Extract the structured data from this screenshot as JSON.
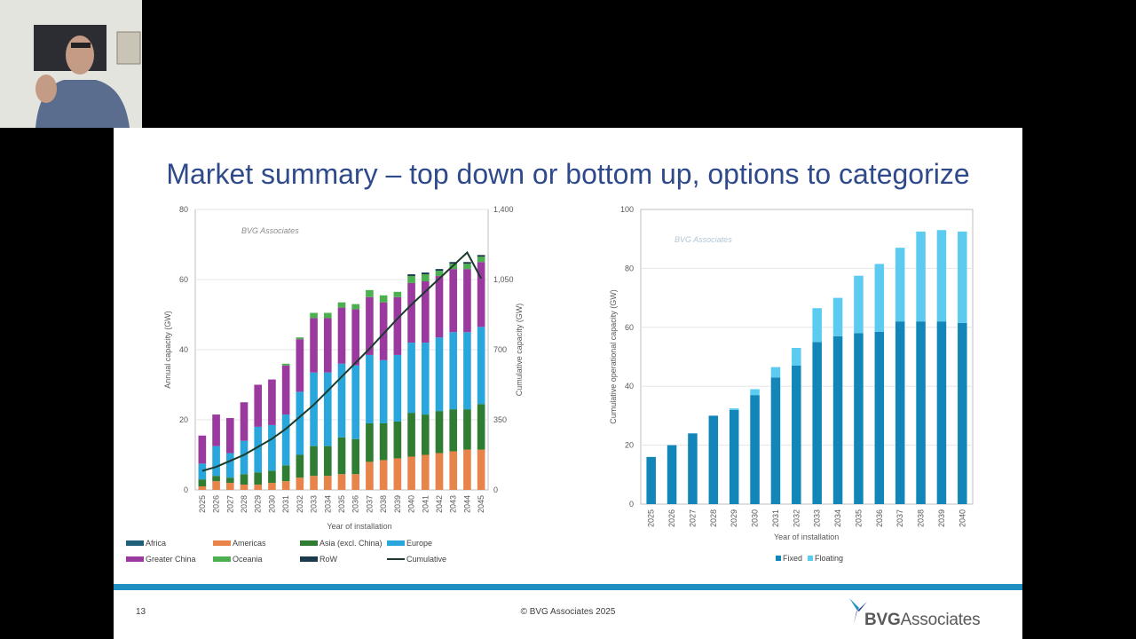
{
  "slide": {
    "title": "Market summary – top down or bottom up, options to categorize",
    "page_number": "13",
    "copyright": "© BVG Associates 2025",
    "logo": {
      "bold": "BVG",
      "light": "Associates"
    }
  },
  "colors": {
    "title": "#2f4a8a",
    "Africa": "#1f5f7a",
    "Americas": "#e8834a",
    "Asia": "#2e7d32",
    "Europe": "#29a6db",
    "GreaterChina": "#9b3a9e",
    "Oceania": "#4caf50",
    "RoW": "#1b3a4b",
    "Cumulative": "#1b3a2b",
    "Fixed": "#1286b8",
    "Floating": "#5ccbf0",
    "footer_bar": "#1e8fc0"
  },
  "chart_data": [
    {
      "type": "bar",
      "stacked": true,
      "watermark": "BVG Associates",
      "xlabel": "Year of installation",
      "ylabel": "Annual capacity (GW)",
      "ylabel_right": "Cumulative capacity (GW)",
      "ylim": [
        0,
        80
      ],
      "yticks": [
        0,
        20,
        40,
        60,
        80
      ],
      "ylim_right": [
        0,
        1400
      ],
      "yticks_right": [
        "0",
        "350",
        "700",
        "1,050",
        "1,400"
      ],
      "categories": [
        "2025",
        "2026",
        "2027",
        "2028",
        "2029",
        "2030",
        "2031",
        "2032",
        "2033",
        "2034",
        "2035",
        "2036",
        "2037",
        "2038",
        "2039",
        "2040",
        "2041",
        "2042",
        "2043",
        "2044",
        "2045"
      ],
      "series": [
        {
          "name": "Africa",
          "values": [
            0,
            0,
            0,
            0,
            0,
            0,
            0,
            0,
            0,
            0,
            0,
            0,
            0,
            0,
            0,
            0,
            0,
            0,
            0,
            0,
            0
          ]
        },
        {
          "name": "Americas",
          "values": [
            1.0,
            2.5,
            2.0,
            1.5,
            1.5,
            2.0,
            2.5,
            3.5,
            4.0,
            4.0,
            4.5,
            4.5,
            8.0,
            8.5,
            9.0,
            9.5,
            10.0,
            10.5,
            11.0,
            11.5,
            11.5
          ]
        },
        {
          "name": "Asia (excl. China)",
          "values": [
            2.0,
            1.5,
            1.5,
            3.0,
            3.5,
            3.5,
            4.5,
            6.5,
            8.5,
            8.5,
            10.5,
            10.0,
            11.0,
            10.5,
            10.5,
            12.5,
            11.5,
            12.0,
            12.0,
            11.5,
            13.0
          ]
        },
        {
          "name": "Europe",
          "values": [
            4.5,
            8.5,
            7.0,
            9.5,
            13.0,
            13.0,
            14.5,
            18.0,
            21.0,
            21.0,
            21.0,
            21.0,
            19.5,
            18.0,
            19.0,
            20.0,
            20.5,
            21.0,
            22.0,
            22.0,
            22.0
          ]
        },
        {
          "name": "Greater China",
          "values": [
            8.0,
            9.0,
            10.0,
            11.0,
            12.0,
            13.0,
            14.0,
            15.0,
            15.5,
            15.5,
            16.0,
            16.0,
            16.5,
            16.5,
            16.5,
            17.0,
            17.5,
            17.5,
            18.0,
            18.0,
            18.5
          ]
        },
        {
          "name": "Oceania",
          "values": [
            0,
            0,
            0,
            0,
            0,
            0,
            0.5,
            0.5,
            1.5,
            1.5,
            1.5,
            1.5,
            2.0,
            2.0,
            1.5,
            2.0,
            2.0,
            1.5,
            1.5,
            1.5,
            1.5
          ]
        },
        {
          "name": "RoW",
          "values": [
            0,
            0,
            0,
            0,
            0,
            0,
            0,
            0,
            0,
            0,
            0,
            0,
            0,
            0,
            0,
            0.5,
            0.5,
            0.5,
            0.5,
            0.5,
            0.5
          ]
        }
      ],
      "line_series": {
        "name": "Cumulative",
        "axis": "right",
        "values": [
          95,
          115,
          145,
          175,
          215,
          255,
          305,
          365,
          425,
          495,
          565,
          635,
          705,
          780,
          855,
          925,
          990,
          1055,
          1120,
          1185,
          1055
        ]
      },
      "legend": [
        [
          "Africa",
          "Americas",
          "Asia (excl. China)",
          "Europe"
        ],
        [
          "Greater China",
          "Oceania",
          "RoW",
          "Cumulative"
        ]
      ]
    },
    {
      "type": "bar",
      "stacked": true,
      "watermark": "BVG Associates",
      "xlabel": "Year of installation",
      "ylabel": "Cumulative operational capacity (GW)",
      "ylim": [
        0,
        100
      ],
      "yticks": [
        0,
        20,
        40,
        60,
        80,
        100
      ],
      "categories": [
        "2025",
        "2026",
        "2027",
        "2028",
        "2029",
        "2030",
        "2031",
        "2032",
        "2033",
        "2034",
        "2035",
        "2036",
        "2037",
        "2038",
        "2039",
        "2040"
      ],
      "series": [
        {
          "name": "Fixed",
          "values": [
            16,
            20,
            24,
            30,
            32,
            37,
            43,
            47,
            55,
            57,
            58,
            58.5,
            62,
            62,
            62,
            61.5
          ]
        },
        {
          "name": "Floating",
          "values": [
            0,
            0,
            0,
            0,
            0.5,
            2,
            3.5,
            6,
            11.5,
            13,
            19.5,
            23,
            25,
            30.5,
            31,
            31
          ]
        }
      ],
      "legend": [
        "Fixed",
        "Floating"
      ]
    }
  ]
}
